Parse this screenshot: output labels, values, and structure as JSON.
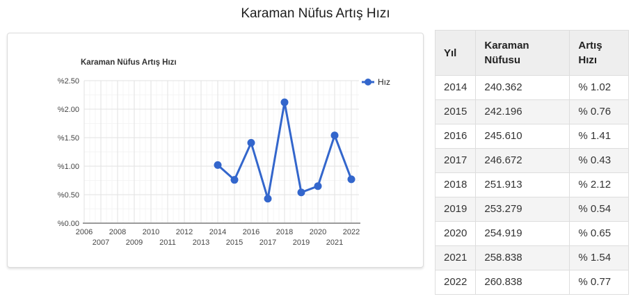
{
  "page": {
    "title": "Karaman Nüfus Artış Hızı"
  },
  "chart_data": {
    "type": "line",
    "title": "Karaman Nüfus Artış Hızı",
    "legend": {
      "position": "right",
      "entries": [
        "Hız"
      ]
    },
    "series": [
      {
        "name": "Hız",
        "color": "#3366cc",
        "x": [
          2014,
          2015,
          2016,
          2017,
          2018,
          2019,
          2020,
          2021,
          2022
        ],
        "values": [
          1.02,
          0.76,
          1.41,
          0.43,
          2.12,
          0.54,
          0.65,
          1.54,
          0.77
        ]
      }
    ],
    "xlim": [
      2006,
      2022
    ],
    "ylim": [
      0,
      2.5
    ],
    "x_tick_labels": [
      "2006",
      "2007",
      "2008",
      "2009",
      "2010",
      "2011",
      "2012",
      "2013",
      "2014",
      "2015",
      "2016",
      "2017",
      "2018",
      "2019",
      "2020",
      "2021",
      "2022"
    ],
    "y_tick_values": [
      0,
      0.5,
      1.0,
      1.5,
      2.0,
      2.5
    ],
    "y_tick_labels": [
      "%0.00",
      "%0.50",
      "%1.00",
      "%1.50",
      "%2.00",
      "%2.50"
    ],
    "grid": true
  },
  "table": {
    "headers": [
      "Yıl",
      "Karaman Nüfusu",
      "Artış Hızı"
    ],
    "rows": [
      [
        "2014",
        "240.362",
        "% 1.02"
      ],
      [
        "2015",
        "242.196",
        "% 0.76"
      ],
      [
        "2016",
        "245.610",
        "% 1.41"
      ],
      [
        "2017",
        "246.672",
        "% 0.43"
      ],
      [
        "2018",
        "251.913",
        "% 2.12"
      ],
      [
        "2019",
        "253.279",
        "% 0.54"
      ],
      [
        "2020",
        "254.919",
        "% 0.65"
      ],
      [
        "2021",
        "258.838",
        "% 1.54"
      ],
      [
        "2022",
        "260.838",
        "% 0.77"
      ]
    ]
  },
  "colors": {
    "accent": "#3366cc",
    "grid_major": "#e2e2e2",
    "grid_minor": "#f4f4f4",
    "axis_line": "#9a9a9a",
    "axis_text": "#444444",
    "chart_title_text": "#333333",
    "legend_text": "#222222",
    "header_bg": "#eeeeee",
    "row_alt_bg": "#f4f4f4",
    "border": "#c6c6c6"
  }
}
